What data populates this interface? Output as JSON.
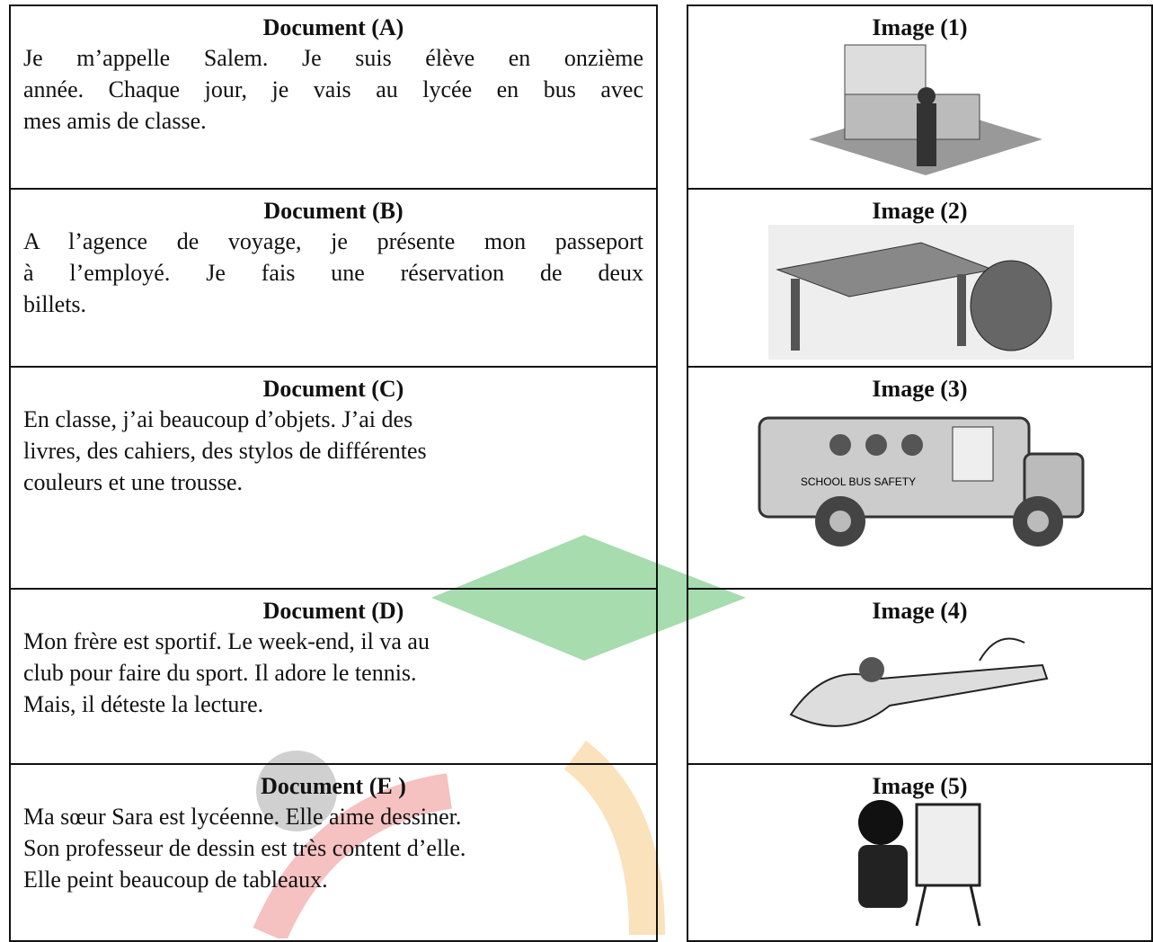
{
  "documents": [
    {
      "title": "Document (A)",
      "lines": [
        "Je m’appelle Salem. Je suis élève en onzième",
        "année. Chaque jour, je vais au lycée en bus avec",
        "mes amis de classe."
      ]
    },
    {
      "title": "Document (B)",
      "lines": [
        "A l’agence de voyage, je présente mon passeport",
        "à l’employé. Je fais une réservation de deux",
        "billets."
      ]
    },
    {
      "title": "Document (C)",
      "lines": [
        "En classe, j’ai beaucoup d’objets. J’ai des",
        "livres, des cahiers, des stylos de différentes",
        "couleurs et une trousse."
      ]
    },
    {
      "title": "Document (D)",
      "lines": [
        "Mon frère est sportif. Le week-end, il va au",
        "club pour faire du sport. Il adore le tennis.",
        "Mais, il déteste la lecture."
      ]
    },
    {
      "title": "Document (E )",
      "lines": [
        "Ma sœur Sara est lycéenne. Elle aime dessiner.",
        "Son professeur de dessin est très content d’elle.",
        "Elle peint beaucoup de tableaux."
      ]
    }
  ],
  "images": [
    {
      "title": "Image (1)"
    },
    {
      "title": "Image (2)"
    },
    {
      "title": "Image (3)",
      "label": "SCHOOL BUS SAFETY"
    },
    {
      "title": "Image (4)"
    },
    {
      "title": "Image (5)"
    }
  ]
}
